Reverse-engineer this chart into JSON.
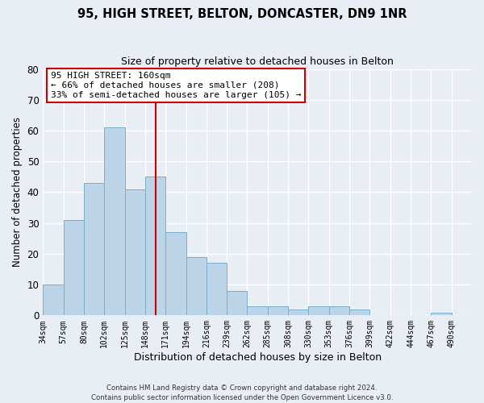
{
  "title": "95, HIGH STREET, BELTON, DONCASTER, DN9 1NR",
  "subtitle": "Size of property relative to detached houses in Belton",
  "xlabel": "Distribution of detached houses by size in Belton",
  "ylabel": "Number of detached properties",
  "bar_color": "#bcd4e8",
  "bar_edge_color": "#7aaec8",
  "bins": [
    "34sqm",
    "57sqm",
    "80sqm",
    "102sqm",
    "125sqm",
    "148sqm",
    "171sqm",
    "194sqm",
    "216sqm",
    "239sqm",
    "262sqm",
    "285sqm",
    "308sqm",
    "330sqm",
    "353sqm",
    "376sqm",
    "399sqm",
    "422sqm",
    "444sqm",
    "467sqm",
    "490sqm"
  ],
  "values": [
    10,
    31,
    43,
    61,
    41,
    45,
    27,
    19,
    17,
    8,
    3,
    3,
    2,
    3,
    3,
    2,
    0,
    0,
    0,
    1,
    0
  ],
  "vline_x": 5.5,
  "vline_color": "#cc0000",
  "ylim": [
    0,
    80
  ],
  "yticks": [
    0,
    10,
    20,
    30,
    40,
    50,
    60,
    70,
    80
  ],
  "annotation_text": "95 HIGH STREET: 160sqm\n← 66% of detached houses are smaller (208)\n33% of semi-detached houses are larger (105) →",
  "footnote": "Contains HM Land Registry data © Crown copyright and database right 2024.\nContains public sector information licensed under the Open Government Licence v3.0.",
  "background_color": "#e8eef4",
  "grid_color": "#ffffff"
}
